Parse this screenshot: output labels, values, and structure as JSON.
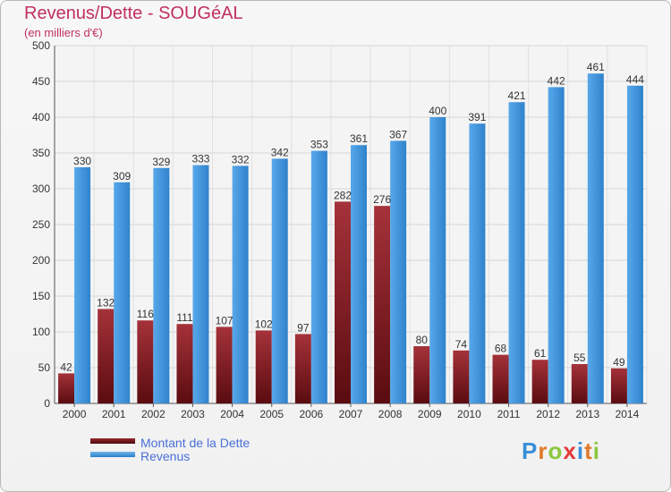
{
  "header": {
    "title": "Revenus/Dette - SOUGéAL",
    "subtitle": "(en milliers d'€)"
  },
  "legend": {
    "items": [
      {
        "label": "Montant de la Dette",
        "color": "#6b1014"
      },
      {
        "label": "Revenus",
        "color": "#3a8fd8"
      }
    ]
  },
  "logo": {
    "text": "Proxiti",
    "letter_colors": [
      "#3a8fd8",
      "#e07a2a",
      "#8cc63f",
      "#e43a3a",
      "#3a8fd8",
      "#e07a2a",
      "#8cc63f"
    ]
  },
  "chart_data": {
    "type": "bar",
    "title": "Revenus/Dette - SOUGéAL",
    "subtitle": "(en milliers d'€)",
    "xlabel": "",
    "ylabel": "",
    "categories": [
      "2000",
      "2001",
      "2002",
      "2003",
      "2004",
      "2005",
      "2006",
      "2007",
      "2008",
      "2009",
      "2010",
      "2011",
      "2012",
      "2013",
      "2014"
    ],
    "series": [
      {
        "name": "Montant de la Dette",
        "color": "#6b1014",
        "values": [
          42,
          132,
          116,
          111,
          107,
          102,
          97,
          282,
          276,
          80,
          74,
          68,
          61,
          55,
          49
        ]
      },
      {
        "name": "Revenus",
        "color": "#3a8fd8",
        "values": [
          330,
          309,
          329,
          333,
          332,
          342,
          353,
          361,
          367,
          400,
          391,
          421,
          442,
          461,
          444
        ]
      }
    ],
    "ylim": [
      0,
      500
    ],
    "yticks": [
      0,
      50,
      100,
      150,
      200,
      250,
      300,
      350,
      400,
      450,
      500
    ],
    "grid": true,
    "legend_position": "bottom-left"
  }
}
